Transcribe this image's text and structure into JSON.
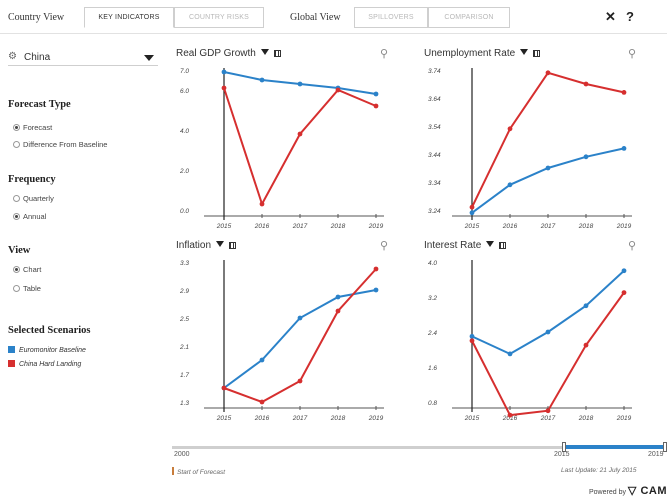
{
  "topbar": {
    "country_view_label": "Country View",
    "global_view_label": "Global View",
    "tabs": [
      {
        "label": "KEY INDICATORS",
        "active": true
      },
      {
        "label": "COUNTRY RISKS",
        "active": false
      },
      {
        "label": "SPILLOVERS",
        "active": false
      },
      {
        "label": "COMPARISON",
        "active": false
      }
    ],
    "close_icon": "✕",
    "help_icon": "?"
  },
  "sidebar": {
    "country": "China",
    "forecast_type": {
      "title": "Forecast Type",
      "options": [
        {
          "label": "Forecast",
          "selected": true
        },
        {
          "label": "Difference From Baseline",
          "selected": false
        }
      ]
    },
    "frequency": {
      "title": "Frequency",
      "options": [
        {
          "label": "Quarterly",
          "selected": false
        },
        {
          "label": "Annual",
          "selected": true
        }
      ]
    },
    "view": {
      "title": "View",
      "options": [
        {
          "label": "Chart",
          "selected": true
        },
        {
          "label": "Table",
          "selected": false
        }
      ]
    },
    "scenarios": {
      "title": "Selected Scenarios",
      "items": [
        {
          "label": "Euromonitor Baseline",
          "color": "#2b82c9"
        },
        {
          "label": "China Hard Landing",
          "color": "#d62f2f"
        }
      ]
    }
  },
  "chart_data": [
    {
      "type": "line",
      "title": "Real GDP Growth",
      "x": [
        "2015",
        "2016",
        "2017",
        "2018",
        "2019"
      ],
      "ylim": [
        0.0,
        7.0
      ],
      "yticks": [
        "7.0",
        "6.0",
        "4.0",
        "2.0",
        "0.0"
      ],
      "ytick_values": [
        7.0,
        6.0,
        4.0,
        2.0,
        0.0
      ],
      "series": [
        {
          "name": "Euromonitor Baseline",
          "color": "#2b82c9",
          "values": [
            6.9,
            6.5,
            6.3,
            6.1,
            5.8
          ]
        },
        {
          "name": "China Hard Landing",
          "color": "#d62f2f",
          "values": [
            6.1,
            0.3,
            3.8,
            6.0,
            5.2
          ]
        }
      ]
    },
    {
      "type": "line",
      "title": "Unemployment Rate",
      "x": [
        "2015",
        "2016",
        "2017",
        "2018",
        "2019"
      ],
      "ylim": [
        3.24,
        3.74
      ],
      "yticks": [
        "3.74",
        "3.64",
        "3.54",
        "3.44",
        "3.34",
        "3.24"
      ],
      "ytick_values": [
        3.74,
        3.64,
        3.54,
        3.44,
        3.34,
        3.24
      ],
      "series": [
        {
          "name": "Euromonitor Baseline",
          "color": "#2b82c9",
          "values": [
            3.23,
            3.33,
            3.39,
            3.43,
            3.46
          ]
        },
        {
          "name": "China Hard Landing",
          "color": "#d62f2f",
          "values": [
            3.25,
            3.53,
            3.73,
            3.69,
            3.66
          ]
        }
      ]
    },
    {
      "type": "line",
      "title": "Inflation",
      "x": [
        "2015",
        "2016",
        "2017",
        "2018",
        "2019"
      ],
      "ylim": [
        1.3,
        3.3
      ],
      "yticks": [
        "3.3",
        "2.9",
        "2.5",
        "2.1",
        "1.7",
        "1.3"
      ],
      "ytick_values": [
        3.3,
        2.9,
        2.5,
        2.1,
        1.7,
        1.3
      ],
      "series": [
        {
          "name": "Euromonitor Baseline",
          "color": "#2b82c9",
          "values": [
            1.5,
            1.9,
            2.5,
            2.8,
            2.9
          ]
        },
        {
          "name": "China Hard Landing",
          "color": "#d62f2f",
          "values": [
            1.5,
            1.3,
            1.6,
            2.6,
            3.2
          ]
        }
      ]
    },
    {
      "type": "line",
      "title": "Interest Rate",
      "x": [
        "2015",
        "2016",
        "2017",
        "2018",
        "2019"
      ],
      "ylim": [
        0.8,
        4.0
      ],
      "yticks": [
        "4.0",
        "3.2",
        "2.4",
        "1.6",
        "0.8"
      ],
      "ytick_values": [
        4.0,
        3.2,
        2.4,
        1.6,
        0.8
      ],
      "series": [
        {
          "name": "Euromonitor Baseline",
          "color": "#2b82c9",
          "values": [
            2.3,
            1.9,
            2.4,
            3.0,
            3.8
          ]
        },
        {
          "name": "China Hard Landing",
          "color": "#d62f2f",
          "values": [
            2.2,
            0.5,
            0.6,
            2.1,
            3.3
          ]
        }
      ]
    }
  ],
  "timeline": {
    "start_label": "2000",
    "sel_start_label": "2015",
    "sel_end_label": "2019",
    "forecast_note": "Start of Forecast",
    "last_update": "Last Update: 21 July 2015"
  },
  "footer": {
    "powered_by": "Powered by",
    "brand": "CAM"
  }
}
